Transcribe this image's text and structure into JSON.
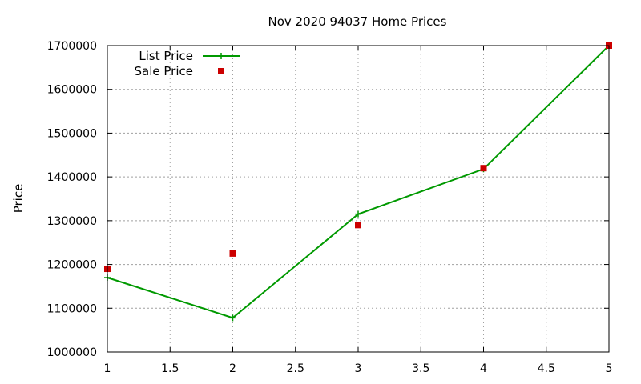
{
  "chart_data": {
    "type": "line",
    "title": "Nov 2020 94037 Home Prices",
    "xlabel": "",
    "ylabel": "Price",
    "xlim": [
      1,
      5
    ],
    "ylim": [
      1000000,
      1700000
    ],
    "x_ticks": [
      1,
      1.5,
      2,
      2.5,
      3,
      3.5,
      4,
      4.5,
      5
    ],
    "y_ticks": [
      1000000,
      1100000,
      1200000,
      1300000,
      1400000,
      1500000,
      1600000,
      1700000
    ],
    "grid": true,
    "legend_position": "top-left",
    "series": [
      {
        "name": "List Price",
        "style": "lines+points",
        "marker": "plus",
        "color": "#009900",
        "x": [
          1,
          2,
          3,
          4,
          5
        ],
        "y": [
          1170000,
          1078000,
          1315000,
          1418000,
          1700000
        ]
      },
      {
        "name": "Sale Price",
        "style": "points",
        "marker": "square",
        "color": "#cc0000",
        "x": [
          1,
          2,
          3,
          4,
          5
        ],
        "y": [
          1190000,
          1225000,
          1290000,
          1420000,
          1700000
        ]
      }
    ]
  }
}
